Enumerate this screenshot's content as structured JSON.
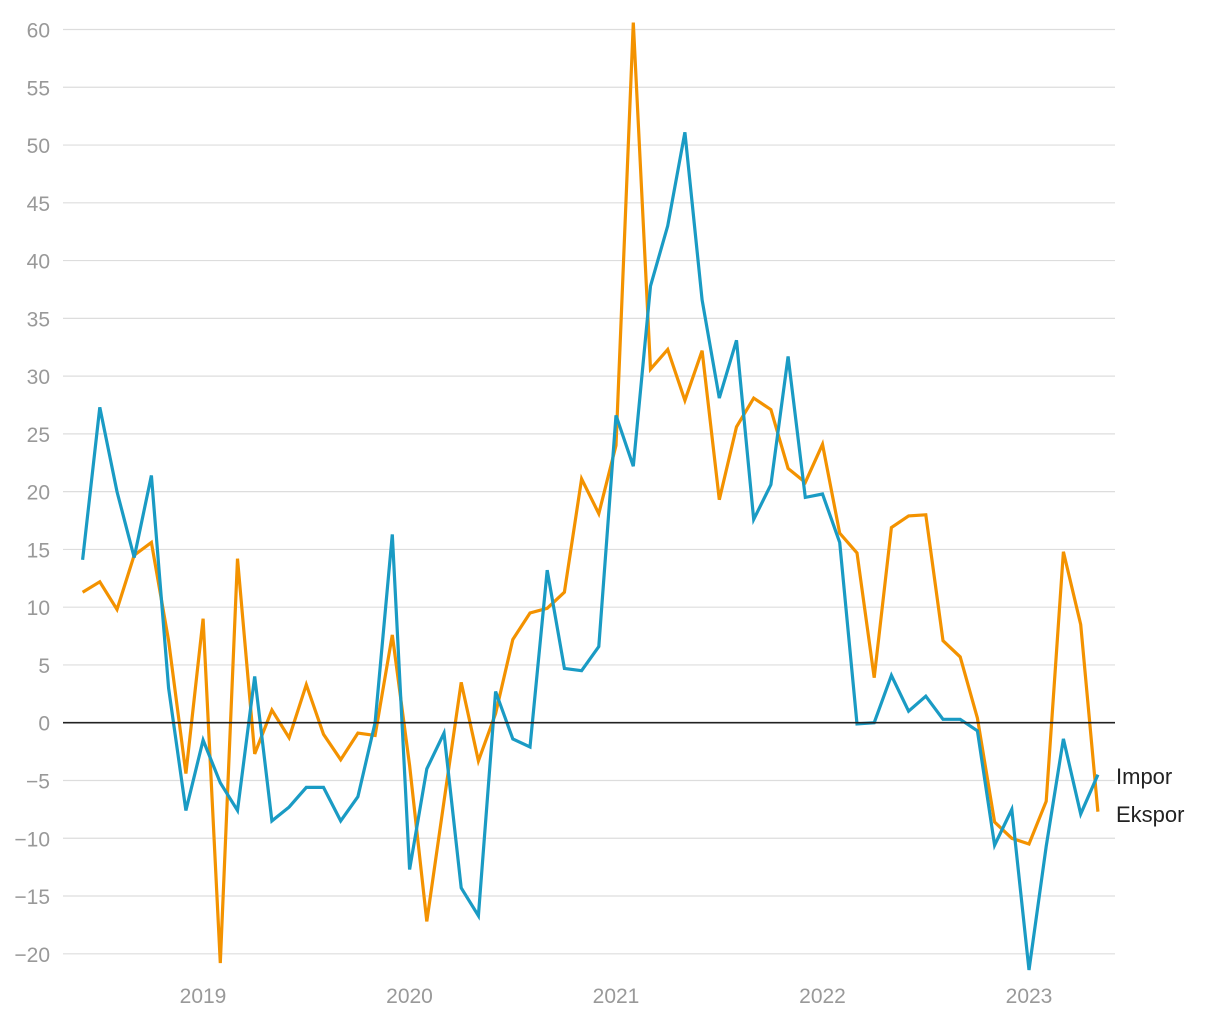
{
  "chart_data": {
    "type": "line",
    "title": "",
    "xlabel": "",
    "ylabel": "",
    "ylim": [
      -21,
      61
    ],
    "yticks": [
      60,
      55,
      50,
      45,
      40,
      35,
      30,
      25,
      20,
      15,
      10,
      5,
      0,
      -5,
      -10,
      -15,
      -20
    ],
    "ytick_labels": [
      "60",
      "55",
      "50",
      "45",
      "40",
      "35",
      "30",
      "25",
      "20",
      "15",
      "10",
      "5",
      "0",
      "−5",
      "−10",
      "−15",
      "−20"
    ],
    "xlim": [
      2018.34,
      2023.44
    ],
    "xticks": [
      2019,
      2020,
      2021,
      2022,
      2023
    ],
    "xtick_labels": [
      "2019",
      "2020",
      "2021",
      "2022",
      "2023"
    ],
    "x_start": 2018.417,
    "x_step": 0.08333,
    "grid": true,
    "legend_placement": "right end labels",
    "series": [
      {
        "name": "Impor",
        "color": "#1a9bc4",
        "values": [
          14.1,
          27.3,
          20.0,
          14.3,
          21.4,
          3.0,
          -7.6,
          -1.5,
          -5.2,
          -7.6,
          4.0,
          -8.5,
          -7.3,
          -5.6,
          -5.6,
          -8.5,
          -6.4,
          0.0,
          16.3,
          -12.7,
          -4.0,
          -0.9,
          -14.3,
          -16.7,
          2.7,
          -1.4,
          -2.1,
          13.2,
          4.7,
          4.5,
          6.6,
          26.6,
          22.2,
          37.8,
          43.0,
          51.1,
          36.6,
          28.1,
          33.1,
          17.6,
          20.6,
          31.7,
          19.5,
          19.8,
          15.6,
          -0.1,
          0.0,
          4.1,
          1.0,
          2.3,
          0.3,
          0.3,
          -0.7,
          -10.6,
          -7.5,
          -21.4,
          -10.7,
          -1.4,
          -7.9,
          -4.5
        ]
      },
      {
        "name": "Ekspor",
        "color": "#f39200",
        "values": [
          11.3,
          12.2,
          9.8,
          14.5,
          15.6,
          7.1,
          -4.4,
          9.0,
          -20.8,
          14.2,
          -2.7,
          1.1,
          -1.3,
          3.3,
          -1.0,
          -3.2,
          -0.9,
          -1.1,
          7.6,
          -3.7,
          -17.2,
          -6.8,
          3.5,
          -3.3,
          0.8,
          7.2,
          9.5,
          9.9,
          11.3,
          21.1,
          18.1,
          24.0,
          60.6,
          30.6,
          32.3,
          27.9,
          32.2,
          19.3,
          25.6,
          28.1,
          27.1,
          22.0,
          20.8,
          24.1,
          16.4,
          14.7,
          3.9,
          16.9,
          17.9,
          18.0,
          7.1,
          5.7,
          0.4,
          -8.6,
          -10.0,
          -10.5,
          -6.8,
          14.8,
          8.5,
          -7.7
        ]
      }
    ]
  }
}
